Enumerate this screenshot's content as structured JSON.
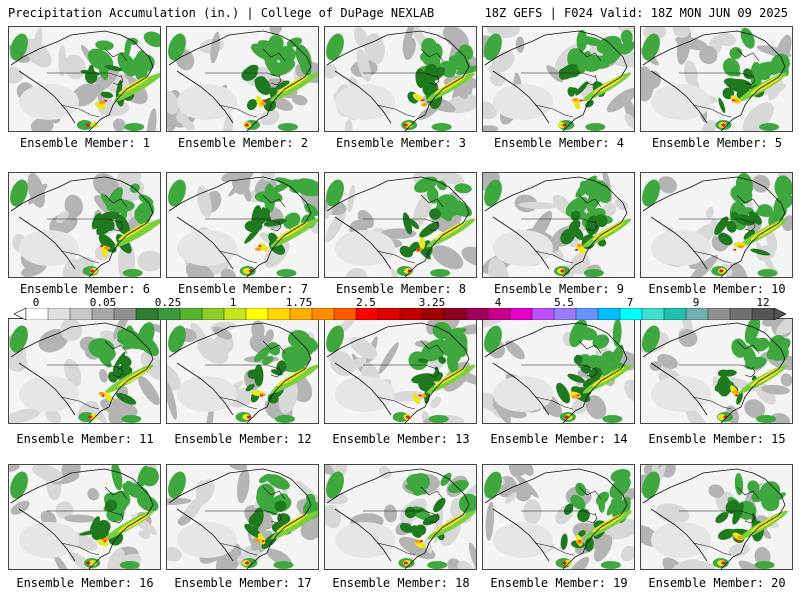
{
  "header": {
    "title": "Precipitation Accumulation (in.) | College of DuPage NEXLAB",
    "run_info": "18Z GEFS | F024 Valid: 18Z MON JUN 09 2025"
  },
  "panels": [
    {
      "label": "Ensemble Member: 1"
    },
    {
      "label": "Ensemble Member: 2"
    },
    {
      "label": "Ensemble Member: 3"
    },
    {
      "label": "Ensemble Member: 4"
    },
    {
      "label": "Ensemble Member: 5"
    },
    {
      "label": "Ensemble Member: 6"
    },
    {
      "label": "Ensemble Member: 7"
    },
    {
      "label": "Ensemble Member: 8"
    },
    {
      "label": "Ensemble Member: 9"
    },
    {
      "label": "Ensemble Member: 10"
    },
    {
      "label": "Ensemble Member: 11"
    },
    {
      "label": "Ensemble Member: 12"
    },
    {
      "label": "Ensemble Member: 13"
    },
    {
      "label": "Ensemble Member: 14"
    },
    {
      "label": "Ensemble Member: 15"
    },
    {
      "label": "Ensemble Member: 16"
    },
    {
      "label": "Ensemble Member: 17"
    },
    {
      "label": "Ensemble Member: 18"
    },
    {
      "label": "Ensemble Member: 19"
    },
    {
      "label": "Ensemble Member: 20"
    }
  ],
  "colorbar": {
    "tick_labels": [
      "0",
      "0.05",
      "0.25",
      "1",
      "1.75",
      "2.5",
      "3.25",
      "4",
      "5.5",
      "7",
      "9",
      "12"
    ],
    "colors": [
      "#ffffff",
      "#e0e0e0",
      "#c8c8c8",
      "#a8a8a8",
      "#909090",
      "#2e7d2e",
      "#3c9a3c",
      "#55b52e",
      "#8ccd29",
      "#c8e620",
      "#ffff00",
      "#ffd700",
      "#ffb000",
      "#ff8c00",
      "#ff5a00",
      "#ff0000",
      "#e00000",
      "#c00000",
      "#a00000",
      "#900020",
      "#a0005a",
      "#c8008c",
      "#e600c8",
      "#c050ff",
      "#9a7dff",
      "#6495ff",
      "#00bfff",
      "#00ffff",
      "#40e0d0",
      "#20c0b0",
      "#70b0b0",
      "#909090",
      "#707070",
      "#555555"
    ]
  },
  "map_colors": {
    "background": "#f4f4f4",
    "light_gray": "#d8d8d8",
    "mid_gray": "#b4b4b4",
    "green_dark": "#1f7a1f",
    "green": "#3ea83e",
    "green_light": "#7ccf3a",
    "yellow": "#e8e820",
    "orange": "#ff9a00",
    "red": "#ee1010",
    "outline": "#111111"
  }
}
